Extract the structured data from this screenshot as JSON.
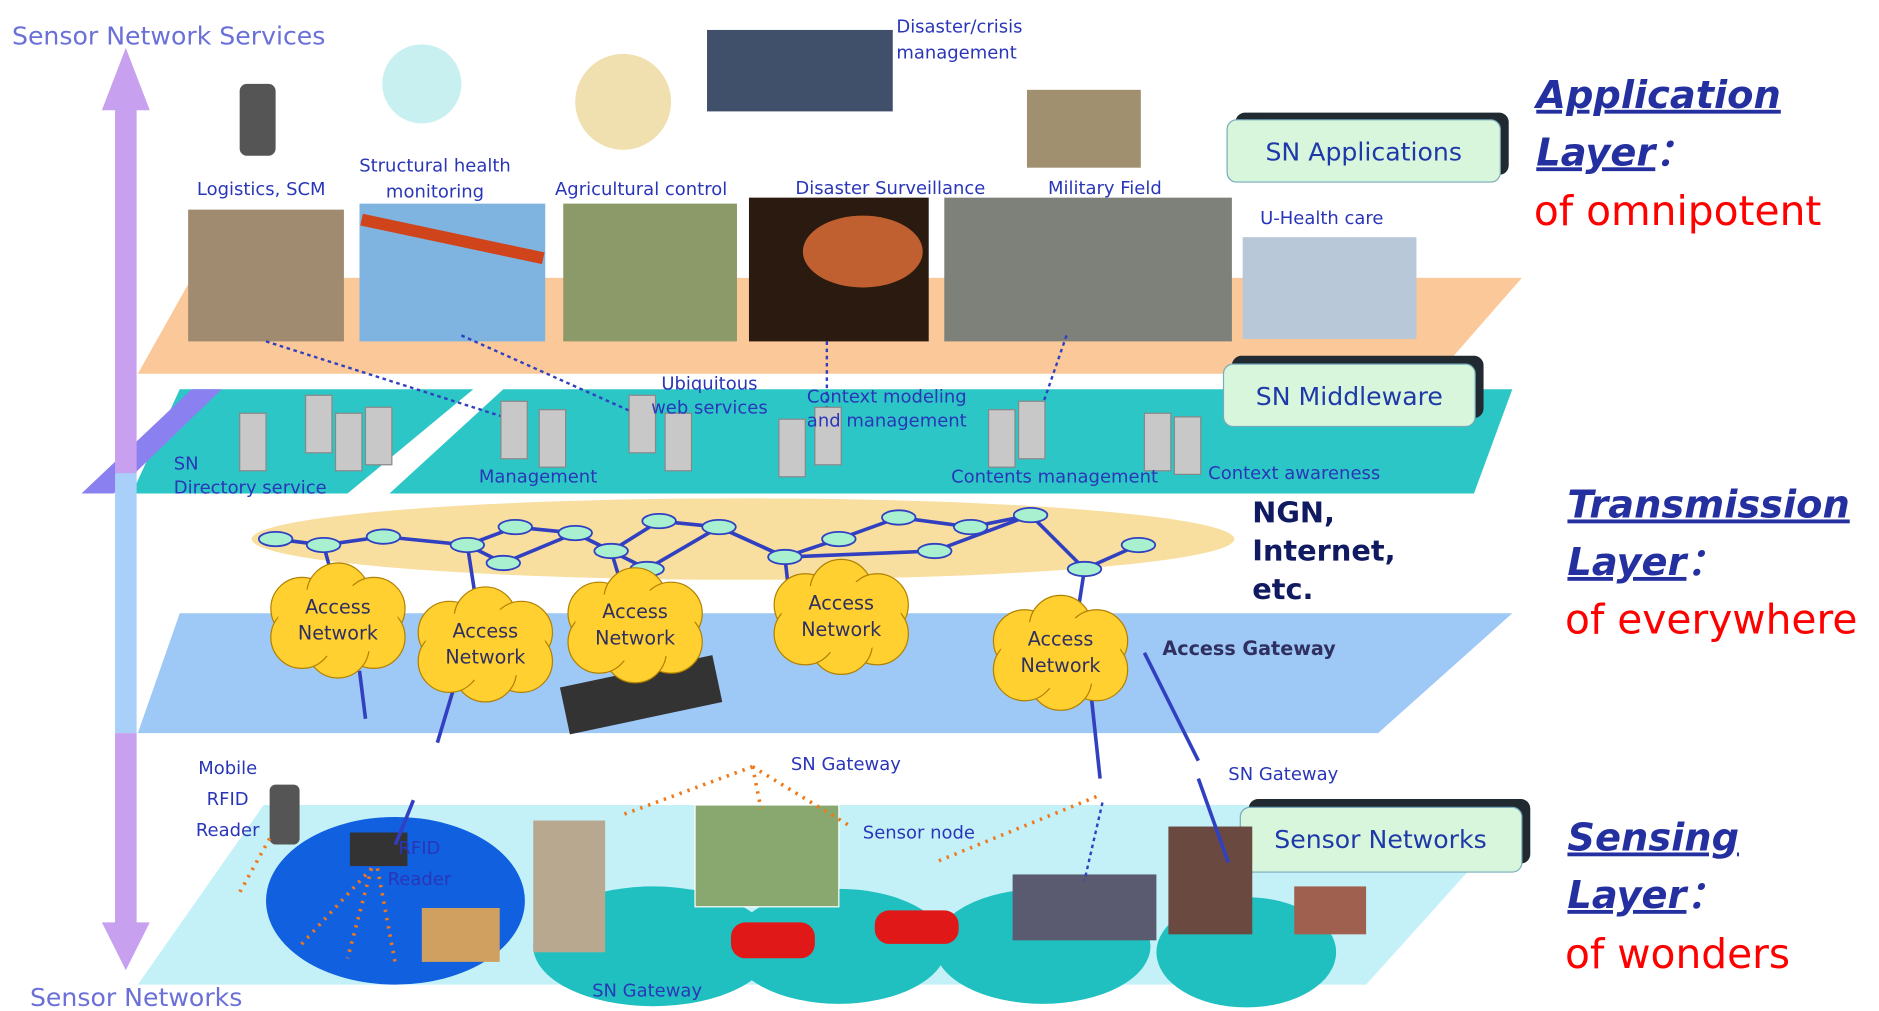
{
  "axis": {
    "top": "Sensor Network Services",
    "bottom": "Sensor Networks"
  },
  "layers": [
    {
      "label": "SN Applications"
    },
    {
      "label": "SN Middleware"
    },
    {
      "label": "Sensor Networks"
    }
  ],
  "applications": [
    {
      "lines": [
        "Logistics, SCM"
      ]
    },
    {
      "lines": [
        "Structural health",
        "monitoring"
      ]
    },
    {
      "lines": [
        "Agricultural control"
      ]
    },
    {
      "lines": [
        "Disaster Surveillance"
      ]
    },
    {
      "lines": [
        "Military Field"
      ]
    },
    {
      "lines": [
        "U-Health care"
      ]
    },
    {
      "lines": [
        "Disaster/crisis",
        "management"
      ]
    }
  ],
  "middleware": [
    {
      "lines": [
        "SN",
        "Directory service"
      ]
    },
    {
      "lines": [
        "Management"
      ]
    },
    {
      "lines": [
        "Ubiquitous",
        "web services"
      ]
    },
    {
      "lines": [
        "Context modeling",
        "and management"
      ]
    },
    {
      "lines": [
        "Contents management"
      ]
    },
    {
      "lines": [
        "Context awareness"
      ]
    }
  ],
  "network": {
    "core": [
      "NGN,",
      "Internet,",
      "etc."
    ],
    "access": [
      {
        "lines": [
          "Access",
          "Network"
        ]
      },
      {
        "lines": [
          "Access",
          "Network"
        ]
      },
      {
        "lines": [
          "Access",
          "Network"
        ]
      },
      {
        "lines": [
          "Access",
          "Network"
        ]
      },
      {
        "lines": [
          "Access",
          "Network"
        ]
      }
    ],
    "gateway": "Access Gateway"
  },
  "sensing": [
    {
      "lines": [
        "Mobile",
        "RFID",
        "Reader"
      ]
    },
    {
      "lines": [
        "RFID",
        "Reader"
      ]
    },
    {
      "lines": [
        "SN Gateway"
      ]
    },
    {
      "lines": [
        "SN Gateway"
      ]
    },
    {
      "lines": [
        "Sensor node"
      ]
    },
    {
      "lines": [
        "SN Gateway"
      ]
    }
  ],
  "descriptions": [
    {
      "title": [
        "Application",
        "Layer"
      ],
      "colon": "：",
      "text": "of omnipotent"
    },
    {
      "title": [
        "Transmission",
        "Layer"
      ],
      "colon": "：",
      "text": "of everywhere"
    },
    {
      "title": [
        "Sensing",
        "Layer"
      ],
      "colon": "：",
      "text": "of wonders"
    }
  ]
}
